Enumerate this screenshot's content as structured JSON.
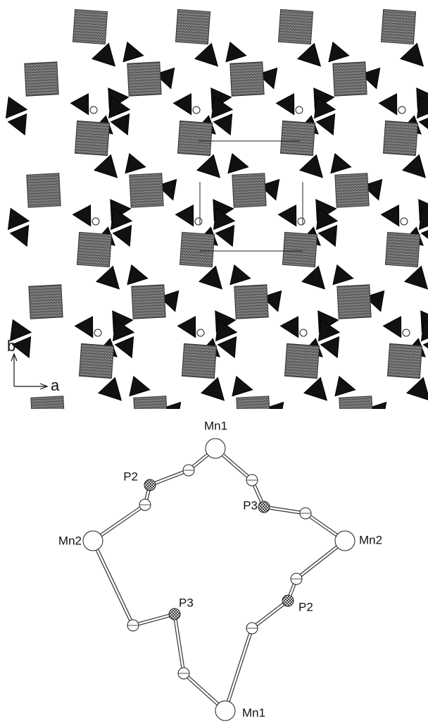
{
  "axis_labels": {
    "vertical": "b",
    "horizontal": "a"
  },
  "ring": {
    "labels": [
      "Mn1",
      "P3",
      "Mn2",
      "P2",
      "Mn1",
      "P3",
      "Mn2",
      "P2"
    ]
  }
}
